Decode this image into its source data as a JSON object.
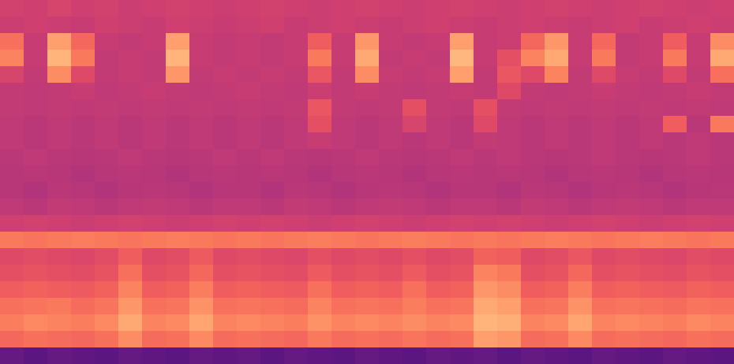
{
  "chart_data": {
    "type": "heatmap",
    "tick_labels": false,
    "zlim": [
      0,
      1
    ],
    "values": [
      [
        0.57,
        0.56,
        0.58,
        0.56,
        0.57,
        0.55,
        0.56,
        0.57,
        0.56,
        0.55,
        0.56,
        0.57,
        0.56,
        0.55,
        0.56,
        0.57,
        0.56,
        0.55,
        0.56,
        0.57,
        0.56,
        0.55,
        0.56,
        0.57,
        0.56,
        0.55,
        0.56,
        0.57,
        0.56,
        0.55,
        0.56
      ],
      [
        0.55,
        0.56,
        0.55,
        0.54,
        0.56,
        0.55,
        0.54,
        0.56,
        0.55,
        0.54,
        0.55,
        0.56,
        0.54,
        0.55,
        0.56,
        0.55,
        0.54,
        0.55,
        0.56,
        0.55,
        0.54,
        0.55,
        0.56,
        0.55,
        0.54,
        0.55,
        0.56,
        0.54,
        0.55,
        0.56,
        0.55
      ],
      [
        0.7,
        0.54,
        0.8,
        0.68,
        0.54,
        0.53,
        0.54,
        0.8,
        0.54,
        0.53,
        0.54,
        0.53,
        0.54,
        0.66,
        0.54,
        0.78,
        0.54,
        0.53,
        0.54,
        0.8,
        0.54,
        0.55,
        0.68,
        0.78,
        0.54,
        0.68,
        0.53,
        0.54,
        0.66,
        0.54,
        0.76
      ],
      [
        0.74,
        0.54,
        0.84,
        0.72,
        0.53,
        0.54,
        0.53,
        0.84,
        0.54,
        0.53,
        0.54,
        0.53,
        0.54,
        0.72,
        0.54,
        0.82,
        0.53,
        0.54,
        0.53,
        0.85,
        0.54,
        0.62,
        0.74,
        0.82,
        0.54,
        0.72,
        0.53,
        0.54,
        0.72,
        0.54,
        0.82
      ],
      [
        0.58,
        0.53,
        0.76,
        0.6,
        0.53,
        0.54,
        0.53,
        0.78,
        0.53,
        0.54,
        0.53,
        0.54,
        0.53,
        0.64,
        0.53,
        0.76,
        0.54,
        0.53,
        0.54,
        0.8,
        0.53,
        0.64,
        0.6,
        0.74,
        0.53,
        0.6,
        0.54,
        0.53,
        0.6,
        0.53,
        0.7
      ],
      [
        0.53,
        0.52,
        0.53,
        0.54,
        0.52,
        0.53,
        0.54,
        0.53,
        0.52,
        0.53,
        0.54,
        0.53,
        0.52,
        0.55,
        0.53,
        0.54,
        0.53,
        0.52,
        0.53,
        0.54,
        0.53,
        0.6,
        0.53,
        0.52,
        0.53,
        0.54,
        0.53,
        0.52,
        0.53,
        0.54,
        0.53
      ],
      [
        0.53,
        0.52,
        0.53,
        0.52,
        0.53,
        0.52,
        0.53,
        0.52,
        0.53,
        0.52,
        0.53,
        0.52,
        0.53,
        0.64,
        0.53,
        0.52,
        0.53,
        0.62,
        0.53,
        0.52,
        0.62,
        0.53,
        0.52,
        0.53,
        0.52,
        0.53,
        0.52,
        0.53,
        0.52,
        0.53,
        0.52
      ],
      [
        0.52,
        0.51,
        0.52,
        0.51,
        0.52,
        0.51,
        0.52,
        0.51,
        0.52,
        0.51,
        0.52,
        0.51,
        0.52,
        0.62,
        0.52,
        0.51,
        0.52,
        0.58,
        0.52,
        0.51,
        0.6,
        0.52,
        0.51,
        0.52,
        0.51,
        0.52,
        0.51,
        0.52,
        0.66,
        0.51,
        0.72
      ],
      [
        0.52,
        0.51,
        0.52,
        0.51,
        0.52,
        0.51,
        0.52,
        0.51,
        0.52,
        0.51,
        0.52,
        0.51,
        0.52,
        0.54,
        0.52,
        0.51,
        0.52,
        0.51,
        0.52,
        0.51,
        0.53,
        0.52,
        0.51,
        0.52,
        0.51,
        0.52,
        0.51,
        0.52,
        0.51,
        0.52,
        0.51
      ],
      [
        0.51,
        0.52,
        0.51,
        0.5,
        0.51,
        0.52,
        0.51,
        0.5,
        0.51,
        0.52,
        0.51,
        0.52,
        0.51,
        0.5,
        0.51,
        0.52,
        0.51,
        0.5,
        0.51,
        0.52,
        0.51,
        0.52,
        0.51,
        0.5,
        0.51,
        0.52,
        0.51,
        0.5,
        0.51,
        0.52,
        0.51
      ],
      [
        0.5,
        0.51,
        0.5,
        0.49,
        0.5,
        0.51,
        0.5,
        0.49,
        0.5,
        0.51,
        0.5,
        0.51,
        0.5,
        0.49,
        0.5,
        0.51,
        0.5,
        0.49,
        0.5,
        0.51,
        0.5,
        0.51,
        0.5,
        0.49,
        0.5,
        0.51,
        0.5,
        0.49,
        0.5,
        0.51,
        0.5
      ],
      [
        0.5,
        0.49,
        0.51,
        0.5,
        0.49,
        0.5,
        0.51,
        0.5,
        0.49,
        0.5,
        0.5,
        0.49,
        0.51,
        0.5,
        0.49,
        0.5,
        0.51,
        0.5,
        0.49,
        0.5,
        0.5,
        0.49,
        0.51,
        0.5,
        0.49,
        0.5,
        0.51,
        0.5,
        0.49,
        0.5,
        0.51
      ],
      [
        0.52,
        0.51,
        0.53,
        0.52,
        0.51,
        0.52,
        0.53,
        0.52,
        0.51,
        0.52,
        0.52,
        0.51,
        0.53,
        0.52,
        0.51,
        0.52,
        0.53,
        0.52,
        0.51,
        0.52,
        0.52,
        0.51,
        0.53,
        0.52,
        0.51,
        0.52,
        0.53,
        0.52,
        0.51,
        0.52,
        0.52
      ],
      [
        0.56,
        0.57,
        0.56,
        0.55,
        0.56,
        0.57,
        0.56,
        0.55,
        0.56,
        0.57,
        0.56,
        0.57,
        0.56,
        0.55,
        0.56,
        0.57,
        0.56,
        0.55,
        0.56,
        0.57,
        0.56,
        0.57,
        0.56,
        0.55,
        0.56,
        0.57,
        0.56,
        0.55,
        0.56,
        0.57,
        0.56
      ],
      [
        0.72,
        0.71,
        0.72,
        0.73,
        0.72,
        0.71,
        0.72,
        0.73,
        0.72,
        0.71,
        0.72,
        0.71,
        0.72,
        0.73,
        0.72,
        0.71,
        0.72,
        0.73,
        0.72,
        0.71,
        0.72,
        0.71,
        0.72,
        0.73,
        0.72,
        0.71,
        0.72,
        0.73,
        0.72,
        0.71,
        0.72
      ],
      [
        0.6,
        0.61,
        0.6,
        0.59,
        0.61,
        0.66,
        0.6,
        0.61,
        0.65,
        0.6,
        0.61,
        0.6,
        0.59,
        0.62,
        0.6,
        0.61,
        0.6,
        0.62,
        0.6,
        0.61,
        0.67,
        0.66,
        0.6,
        0.61,
        0.64,
        0.6,
        0.61,
        0.6,
        0.59,
        0.61,
        0.6
      ],
      [
        0.62,
        0.63,
        0.62,
        0.61,
        0.63,
        0.7,
        0.62,
        0.63,
        0.68,
        0.62,
        0.63,
        0.62,
        0.61,
        0.65,
        0.62,
        0.63,
        0.62,
        0.65,
        0.62,
        0.63,
        0.74,
        0.72,
        0.62,
        0.63,
        0.68,
        0.62,
        0.63,
        0.62,
        0.61,
        0.63,
        0.62
      ],
      [
        0.66,
        0.67,
        0.66,
        0.65,
        0.67,
        0.74,
        0.66,
        0.67,
        0.73,
        0.66,
        0.67,
        0.66,
        0.65,
        0.7,
        0.66,
        0.67,
        0.66,
        0.7,
        0.66,
        0.67,
        0.78,
        0.76,
        0.66,
        0.67,
        0.73,
        0.66,
        0.67,
        0.66,
        0.65,
        0.67,
        0.66
      ],
      [
        0.7,
        0.71,
        0.72,
        0.69,
        0.71,
        0.78,
        0.7,
        0.71,
        0.77,
        0.7,
        0.71,
        0.7,
        0.69,
        0.74,
        0.7,
        0.71,
        0.7,
        0.73,
        0.7,
        0.71,
        0.82,
        0.8,
        0.7,
        0.71,
        0.77,
        0.7,
        0.71,
        0.7,
        0.69,
        0.71,
        0.7
      ],
      [
        0.73,
        0.75,
        0.74,
        0.73,
        0.75,
        0.82,
        0.74,
        0.75,
        0.81,
        0.74,
        0.75,
        0.74,
        0.73,
        0.77,
        0.74,
        0.75,
        0.74,
        0.76,
        0.74,
        0.75,
        0.84,
        0.83,
        0.74,
        0.75,
        0.81,
        0.74,
        0.75,
        0.74,
        0.73,
        0.75,
        0.74
      ],
      [
        0.68,
        0.7,
        0.69,
        0.68,
        0.7,
        0.76,
        0.69,
        0.7,
        0.75,
        0.69,
        0.7,
        0.69,
        0.68,
        0.72,
        0.69,
        0.7,
        0.69,
        0.71,
        0.69,
        0.7,
        0.8,
        0.78,
        0.69,
        0.7,
        0.75,
        0.69,
        0.7,
        0.69,
        0.68,
        0.7,
        0.69
      ],
      [
        0.3,
        0.28,
        0.3,
        0.29,
        0.28,
        0.3,
        0.29,
        0.28,
        0.3,
        0.29,
        0.3,
        0.28,
        0.3,
        0.29,
        0.28,
        0.3,
        0.29,
        0.28,
        0.3,
        0.29,
        0.3,
        0.28,
        0.3,
        0.29,
        0.28,
        0.3,
        0.29,
        0.28,
        0.3,
        0.29,
        0.28
      ]
    ]
  }
}
